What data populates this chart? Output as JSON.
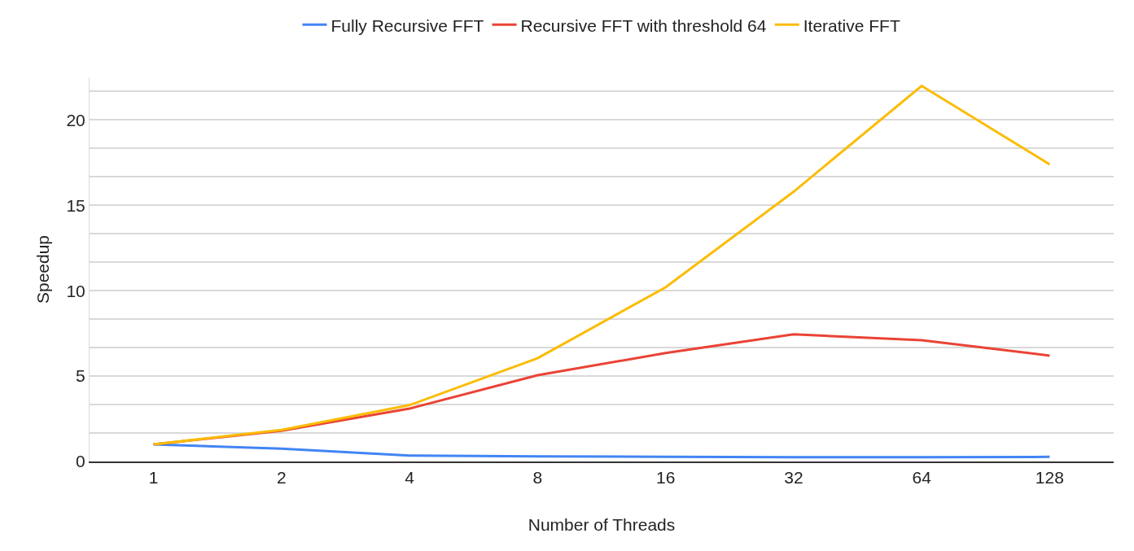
{
  "chart_data": {
    "type": "line",
    "xlabel": "Number of Threads",
    "ylabel": "Speedup",
    "categories": [
      "1",
      "2",
      "4",
      "8",
      "16",
      "32",
      "64",
      "128"
    ],
    "series": [
      {
        "name": "Fully Recursive FFT",
        "color": "#4285f4",
        "values": [
          1.0,
          0.75,
          0.35,
          0.3,
          0.28,
          0.25,
          0.25,
          0.27
        ]
      },
      {
        "name": "Recursive FFT with threshold 64",
        "color": "#ea4335",
        "values": [
          1.0,
          1.8,
          3.1,
          5.05,
          6.35,
          7.45,
          7.1,
          6.2
        ]
      },
      {
        "name": "Iterative FFT",
        "color": "#fbbc04",
        "values": [
          1.0,
          1.85,
          3.3,
          6.05,
          10.2,
          15.8,
          22.0,
          17.4
        ]
      }
    ],
    "ylim": [
      0,
      22.5
    ],
    "yticks": [
      0,
      {
        "value": 1.667,
        "label": null
      },
      {
        "value": 3.333,
        "label": null
      },
      5,
      {
        "value": 6.667,
        "label": null
      },
      {
        "value": 8.333,
        "label": null
      },
      10,
      {
        "value": 11.667,
        "label": null
      },
      {
        "value": 13.333,
        "label": null
      },
      15,
      {
        "value": 16.667,
        "label": null
      },
      {
        "value": 18.333,
        "label": null
      },
      20,
      {
        "value": 21.667,
        "label": null
      }
    ],
    "grid": "y",
    "legend": "top",
    "marker": "none",
    "line_style": "solid"
  }
}
